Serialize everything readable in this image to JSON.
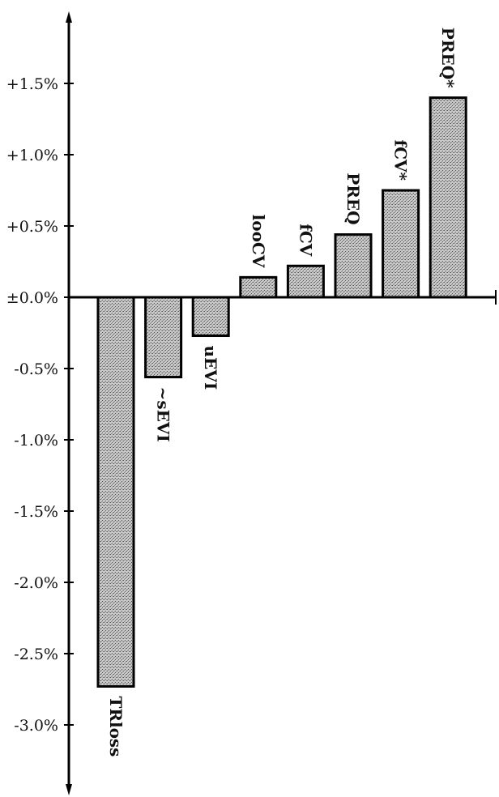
{
  "chart_data": {
    "type": "bar",
    "title": "",
    "xlabel": "",
    "ylabel": "",
    "categories": [
      "TRloss",
      "~sEVI",
      "uEVI",
      "looCV",
      "fCV",
      "PREQ",
      "fCV*",
      "PREQ*"
    ],
    "values": [
      -2.73,
      -0.56,
      -0.27,
      0.14,
      0.22,
      0.44,
      0.75,
      1.4
    ],
    "unit": "%",
    "ylim": [
      -3.3,
      1.95
    ],
    "yticks": [
      1.5,
      1.0,
      0.5,
      0.0,
      -0.5,
      -1.0,
      -1.5,
      -2.0,
      -2.5,
      -3.0
    ],
    "ytick_labels": [
      "+1.5%",
      "+1.0%",
      "+0.5%",
      "±0.0%",
      "-0.5%",
      "-1.0%",
      "-1.5%",
      "-2.0%",
      "-2.5%",
      "-3.0%"
    ],
    "grid": false,
    "legend": null,
    "bar_fill": "#b8b8b8",
    "bar_stroke": "#000000",
    "label_orientation": "rotated-90-clockwise"
  }
}
